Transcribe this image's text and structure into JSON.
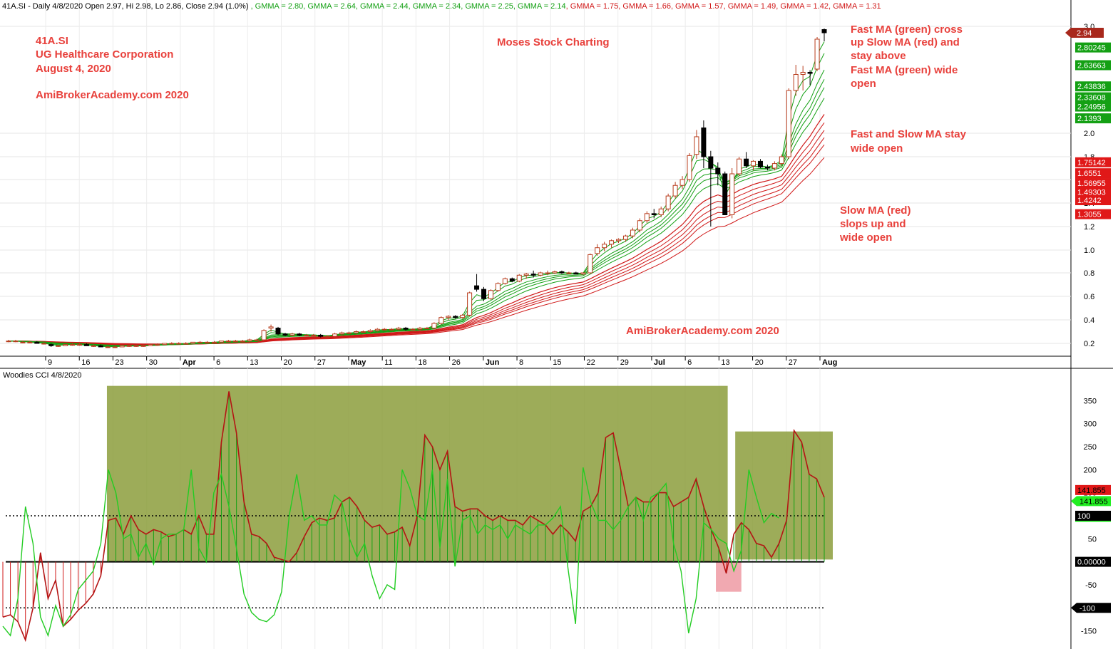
{
  "header": {
    "ticker_line": "41A.SI - Daily 4/8/2020 Open 2.97, Hi 2.98, Lo 2.86, Close 2.94 (1.0%)",
    "gmma_values": [
      {
        "text": "GMMA = 2.80",
        "color": "#14a014"
      },
      {
        "text": "GMMA = 2.64",
        "color": "#14a014"
      },
      {
        "text": "GMMA = 2.44",
        "color": "#14a014"
      },
      {
        "text": "GMMA = 2.34",
        "color": "#14a014"
      },
      {
        "text": "GMMA = 2.25",
        "color": "#14a014"
      },
      {
        "text": "GMMA = 2.14",
        "color": "#14a014"
      },
      {
        "text": "GMMA = 1.75",
        "color": "#d01818"
      },
      {
        "text": "GMMA = 1.66",
        "color": "#d01818"
      },
      {
        "text": "GMMA = 1.57",
        "color": "#d01818"
      },
      {
        "text": "GMMA = 1.49",
        "color": "#d01818"
      },
      {
        "text": "GMMA = 1.42",
        "color": "#d01818"
      },
      {
        "text": "GMMA = 1.31",
        "color": "#d01818"
      }
    ]
  },
  "annotations": {
    "company_lines": [
      "41A.SI",
      "UG Healthcare Corporation",
      "August 4, 2020"
    ],
    "site": "AmiBrokerAcademy.com  2020",
    "moses": "Moses Stock Charting",
    "site_bottom": "AmiBrokerAcademy.com  2020",
    "fast_cross": [
      "Fast MA (green) cross",
      "up Slow MA (red) and",
      "stay above",
      "Fast MA (green) wide",
      "open"
    ],
    "fast_slow_open": [
      "Fast and Slow MA stay",
      "wide open"
    ],
    "slow_slope": [
      "Slow MA (red)",
      "slops up and",
      "wide open"
    ]
  },
  "cci_panel": {
    "title": "Woodies CCI  4/8/2020"
  },
  "colors": {
    "fast_ma": "#14a014",
    "slow_ma": "#d01818",
    "annotation": "#e8413c",
    "cci_zone": "#8c9d3c",
    "cci_neg_zone": "#f0a0a8",
    "bull_candle_fill": "#ffffff",
    "bull_candle_stroke": "#b83c1c",
    "bear_candle": "#000000"
  },
  "chart_data": [
    {
      "type": "candlestick",
      "title": "41A.SI - Daily",
      "x_labels": [
        "9",
        "16",
        "23",
        "30",
        "Apr",
        "6",
        "13",
        "20",
        "27",
        "May",
        "11",
        "18",
        "26",
        "Jun",
        "8",
        "15",
        "22",
        "29",
        "Jul",
        "6",
        "13",
        "20",
        "27",
        "Aug"
      ],
      "ylim": [
        0.1,
        3.05
      ],
      "y_ticks": [
        0.2,
        0.4,
        0.6,
        0.8,
        1.0,
        1.2,
        1.4,
        1.6,
        1.8,
        2.0,
        3.0
      ],
      "last_close": 2.94,
      "ohlc_sample": [
        [
          0.22,
          0.23,
          0.21,
          0.22
        ],
        [
          0.22,
          0.23,
          0.21,
          0.22
        ],
        [
          0.21,
          0.22,
          0.2,
          0.21
        ],
        [
          0.21,
          0.22,
          0.2,
          0.21
        ],
        [
          0.21,
          0.22,
          0.2,
          0.2
        ],
        [
          0.2,
          0.21,
          0.19,
          0.2
        ],
        [
          0.19,
          0.2,
          0.17,
          0.18
        ],
        [
          0.18,
          0.19,
          0.17,
          0.18
        ],
        [
          0.18,
          0.19,
          0.18,
          0.19
        ],
        [
          0.19,
          0.2,
          0.18,
          0.19
        ],
        [
          0.19,
          0.2,
          0.18,
          0.19
        ],
        [
          0.19,
          0.2,
          0.18,
          0.18
        ],
        [
          0.18,
          0.19,
          0.17,
          0.18
        ],
        [
          0.18,
          0.19,
          0.17,
          0.17
        ],
        [
          0.17,
          0.18,
          0.16,
          0.17
        ],
        [
          0.17,
          0.18,
          0.16,
          0.17
        ],
        [
          0.17,
          0.18,
          0.17,
          0.18
        ],
        [
          0.18,
          0.19,
          0.17,
          0.18
        ],
        [
          0.18,
          0.19,
          0.17,
          0.18
        ],
        [
          0.18,
          0.19,
          0.17,
          0.18
        ],
        [
          0.18,
          0.19,
          0.18,
          0.19
        ],
        [
          0.19,
          0.2,
          0.18,
          0.19
        ],
        [
          0.19,
          0.2,
          0.19,
          0.2
        ],
        [
          0.2,
          0.21,
          0.19,
          0.2
        ],
        [
          0.2,
          0.21,
          0.19,
          0.2
        ],
        [
          0.2,
          0.21,
          0.2,
          0.2
        ],
        [
          0.2,
          0.21,
          0.2,
          0.21
        ],
        [
          0.21,
          0.22,
          0.2,
          0.21
        ],
        [
          0.21,
          0.22,
          0.2,
          0.21
        ],
        [
          0.21,
          0.22,
          0.2,
          0.21
        ],
        [
          0.21,
          0.22,
          0.21,
          0.22
        ],
        [
          0.22,
          0.23,
          0.21,
          0.22
        ],
        [
          0.22,
          0.23,
          0.21,
          0.22
        ],
        [
          0.22,
          0.23,
          0.21,
          0.22
        ],
        [
          0.22,
          0.24,
          0.21,
          0.23
        ],
        [
          0.23,
          0.24,
          0.22,
          0.23
        ],
        [
          0.23,
          0.32,
          0.22,
          0.31
        ],
        [
          0.33,
          0.36,
          0.3,
          0.34
        ],
        [
          0.33,
          0.34,
          0.27,
          0.28
        ],
        [
          0.28,
          0.29,
          0.26,
          0.27
        ],
        [
          0.27,
          0.29,
          0.26,
          0.28
        ],
        [
          0.28,
          0.29,
          0.26,
          0.27
        ],
        [
          0.27,
          0.28,
          0.26,
          0.27
        ],
        [
          0.27,
          0.28,
          0.26,
          0.27
        ],
        [
          0.27,
          0.28,
          0.25,
          0.26
        ],
        [
          0.26,
          0.27,
          0.25,
          0.26
        ],
        [
          0.26,
          0.29,
          0.25,
          0.28
        ],
        [
          0.28,
          0.3,
          0.27,
          0.29
        ],
        [
          0.29,
          0.3,
          0.28,
          0.29
        ],
        [
          0.29,
          0.31,
          0.28,
          0.3
        ],
        [
          0.3,
          0.31,
          0.29,
          0.3
        ],
        [
          0.3,
          0.32,
          0.29,
          0.31
        ],
        [
          0.31,
          0.33,
          0.3,
          0.32
        ],
        [
          0.32,
          0.33,
          0.31,
          0.32
        ],
        [
          0.32,
          0.33,
          0.31,
          0.32
        ],
        [
          0.32,
          0.34,
          0.31,
          0.33
        ],
        [
          0.33,
          0.34,
          0.31,
          0.32
        ],
        [
          0.32,
          0.33,
          0.31,
          0.32
        ],
        [
          0.32,
          0.34,
          0.31,
          0.33
        ],
        [
          0.33,
          0.34,
          0.32,
          0.33
        ],
        [
          0.33,
          0.38,
          0.32,
          0.37
        ],
        [
          0.37,
          0.43,
          0.36,
          0.42
        ],
        [
          0.42,
          0.44,
          0.4,
          0.43
        ],
        [
          0.43,
          0.44,
          0.41,
          0.42
        ],
        [
          0.42,
          0.45,
          0.41,
          0.44
        ],
        [
          0.44,
          0.64,
          0.43,
          0.63
        ],
        [
          0.69,
          0.79,
          0.64,
          0.66
        ],
        [
          0.66,
          0.68,
          0.56,
          0.58
        ],
        [
          0.58,
          0.66,
          0.57,
          0.65
        ],
        [
          0.65,
          0.72,
          0.64,
          0.71
        ],
        [
          0.71,
          0.76,
          0.7,
          0.75
        ],
        [
          0.75,
          0.76,
          0.72,
          0.73
        ],
        [
          0.73,
          0.79,
          0.72,
          0.78
        ],
        [
          0.78,
          0.8,
          0.75,
          0.79
        ],
        [
          0.79,
          0.82,
          0.76,
          0.78
        ],
        [
          0.78,
          0.81,
          0.77,
          0.8
        ],
        [
          0.8,
          0.82,
          0.78,
          0.8
        ],
        [
          0.8,
          0.82,
          0.79,
          0.81
        ],
        [
          0.81,
          0.82,
          0.79,
          0.8
        ],
        [
          0.8,
          0.81,
          0.79,
          0.8
        ],
        [
          0.8,
          0.81,
          0.79,
          0.79
        ],
        [
          0.79,
          0.8,
          0.78,
          0.8
        ],
        [
          0.8,
          0.97,
          0.79,
          0.96
        ],
        [
          0.97,
          1.05,
          0.95,
          1.02
        ],
        [
          1.02,
          1.07,
          0.99,
          1.05
        ],
        [
          1.05,
          1.09,
          1.02,
          1.08
        ],
        [
          1.08,
          1.1,
          1.06,
          1.09
        ],
        [
          1.09,
          1.13,
          1.07,
          1.12
        ],
        [
          1.12,
          1.19,
          1.1,
          1.17
        ],
        [
          1.17,
          1.27,
          1.15,
          1.25
        ],
        [
          1.25,
          1.33,
          1.23,
          1.31
        ],
        [
          1.31,
          1.35,
          1.27,
          1.3
        ],
        [
          1.3,
          1.37,
          1.28,
          1.35
        ],
        [
          1.35,
          1.48,
          1.33,
          1.46
        ],
        [
          1.46,
          1.58,
          1.44,
          1.55
        ],
        [
          1.55,
          1.63,
          1.52,
          1.6
        ],
        [
          1.6,
          1.83,
          1.58,
          1.81
        ],
        [
          1.82,
          2.03,
          1.78,
          1.97
        ],
        [
          2.05,
          2.12,
          1.7,
          1.8
        ],
        [
          1.8,
          1.85,
          1.2,
          1.7
        ],
        [
          1.7,
          1.75,
          1.55,
          1.65
        ],
        [
          1.65,
          1.67,
          1.3,
          1.3
        ],
        [
          1.3,
          1.7,
          1.27,
          1.65
        ],
        [
          1.65,
          1.8,
          1.63,
          1.78
        ],
        [
          1.78,
          1.84,
          1.7,
          1.72
        ],
        [
          1.72,
          1.77,
          1.68,
          1.76
        ],
        [
          1.76,
          1.78,
          1.7,
          1.71
        ],
        [
          1.71,
          1.73,
          1.68,
          1.7
        ],
        [
          1.7,
          1.76,
          1.68,
          1.74
        ],
        [
          1.74,
          1.82,
          1.72,
          1.8
        ],
        [
          1.8,
          2.42,
          1.78,
          2.4
        ],
        [
          2.4,
          2.64,
          2.35,
          2.55
        ],
        [
          2.55,
          2.63,
          2.4,
          2.57
        ],
        [
          2.57,
          2.59,
          2.45,
          2.56
        ],
        [
          2.6,
          2.9,
          2.58,
          2.88
        ],
        [
          2.97,
          2.98,
          2.86,
          2.94
        ]
      ],
      "gmma_fast_last": [
        2.80245,
        2.63663,
        2.43836,
        2.33608,
        2.24956,
        2.1393
      ],
      "gmma_slow_last": [
        1.75142,
        1.6551,
        1.56955,
        1.49303,
        1.4242,
        1.3055
      ]
    },
    {
      "type": "line",
      "title": "Woodies CCI  4/8/2020",
      "ylim": [
        -180,
        400
      ],
      "y_ticks": [
        350,
        300,
        250,
        200,
        150,
        100,
        50,
        0,
        -50,
        -100,
        -150
      ],
      "reference_lines": [
        100,
        0,
        -100
      ],
      "series": [
        {
          "name": "CCI",
          "color": "#d01818",
          "values": [
            -120,
            -115,
            -130,
            -170,
            -100,
            20,
            -80,
            -40,
            -140,
            -125,
            -105,
            -90,
            -70,
            -30,
            90,
            95,
            60,
            100,
            70,
            60,
            70,
            65,
            55,
            60,
            70,
            60,
            100,
            60,
            60,
            260,
            370,
            280,
            130,
            60,
            55,
            40,
            10,
            5,
            0,
            20,
            55,
            85,
            95,
            90,
            95,
            130,
            140,
            120,
            90,
            75,
            80,
            60,
            65,
            75,
            35,
            100,
            275,
            250,
            200,
            240,
            120,
            110,
            115,
            115,
            100,
            90,
            100,
            90,
            90,
            80,
            100,
            90,
            80,
            60,
            80,
            65,
            45,
            110,
            120,
            150,
            270,
            280,
            200,
            120,
            140,
            130,
            130,
            150,
            150,
            120,
            130,
            140,
            180,
            120,
            70,
            30,
            -25,
            60,
            85,
            70,
            40,
            35,
            10,
            40,
            90,
            285,
            260,
            190,
            180,
            140
          ]
        },
        {
          "name": "Turbo CCI",
          "color": "#1ec81e",
          "values": [
            -140,
            -160,
            -80,
            120,
            40,
            -120,
            -160,
            -95,
            -140,
            -115,
            -60,
            -40,
            -20,
            40,
            200,
            150,
            50,
            60,
            10,
            40,
            -5,
            50,
            60,
            60,
            70,
            200,
            30,
            0,
            150,
            190,
            120,
            30,
            -70,
            -110,
            -125,
            -130,
            -115,
            -65,
            100,
            190,
            90,
            100,
            80,
            80,
            145,
            130,
            50,
            10,
            40,
            -30,
            -80,
            -50,
            -60,
            200,
            160,
            100,
            90,
            200,
            30,
            180,
            -10,
            90,
            100,
            60,
            80,
            70,
            80,
            50,
            80,
            70,
            60,
            80,
            80,
            95,
            120,
            -15,
            -135,
            205,
            130,
            90,
            90,
            70,
            90,
            120,
            140,
            90,
            140,
            150,
            170,
            40,
            -20,
            -155,
            -80,
            85,
            70,
            50,
            40,
            -20,
            25,
            200,
            140,
            85,
            105,
            95
          ]
        }
      ],
      "last_values": [
        141.855,
        94.5569
      ]
    }
  ]
}
